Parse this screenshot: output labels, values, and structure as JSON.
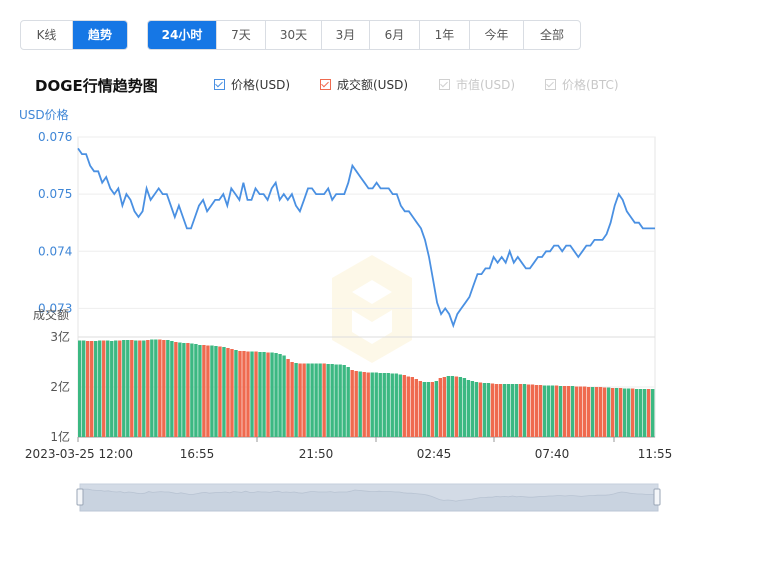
{
  "view_tabs": [
    {
      "label": "K线",
      "active": false
    },
    {
      "label": "趋势",
      "active": true
    }
  ],
  "range_tabs": [
    {
      "label": "24小时",
      "active": true
    },
    {
      "label": "7天",
      "active": false
    },
    {
      "label": "30天",
      "active": false
    },
    {
      "label": "3月",
      "active": false
    },
    {
      "label": "6月",
      "active": false
    },
    {
      "label": "1年",
      "active": false
    },
    {
      "label": "今年",
      "active": false
    },
    {
      "label": "全部",
      "active": false
    }
  ],
  "legend": [
    {
      "label": "价格(USD)",
      "checked": true,
      "color": "#4a90e2"
    },
    {
      "label": "成交额(USD)",
      "checked": true,
      "color": "#ef6a4f"
    },
    {
      "label": "市值(USD)",
      "checked": false,
      "color": "#cccccc"
    },
    {
      "label": "价格(BTC)",
      "checked": false,
      "color": "#cccccc"
    }
  ],
  "colors": {
    "accent": "#1677e5",
    "price_line": "#4a90e2",
    "volume_up": "#3cb882",
    "volume_down": "#ef6a4f",
    "navigator_fill": "#d3dbe6"
  },
  "chart_data": [
    {
      "type": "line",
      "title": "DOGE行情趋势图",
      "ylabel": "USD价格",
      "ylim": [
        0.0725,
        0.076
      ],
      "yticks": [
        "0.076",
        "0.075",
        "0.074",
        "0.073"
      ],
      "xticks": [
        "2023-03-25 12:00",
        "16:55",
        "21:50",
        "02:45",
        "07:40",
        "11:55"
      ],
      "grid": true,
      "series": [
        {
          "name": "价格(USD)",
          "x_minutes": [
            0,
            5,
            10,
            15,
            20,
            25,
            30,
            35,
            40,
            45,
            50,
            55,
            60,
            65,
            70,
            75,
            80,
            85,
            90,
            95,
            100,
            105,
            110,
            115,
            120,
            125,
            130,
            135,
            140,
            145,
            150,
            155,
            160,
            165,
            170,
            175,
            180,
            185,
            190,
            195,
            200,
            205,
            210,
            215,
            220,
            225,
            230,
            235,
            240,
            245,
            250,
            255,
            260,
            265,
            270,
            275,
            280,
            285,
            290,
            295,
            300,
            305,
            310,
            315,
            320,
            325,
            330,
            335,
            340,
            345,
            350,
            355,
            360,
            365,
            370,
            375,
            380,
            385,
            390,
            395,
            400,
            405,
            410,
            415,
            420,
            425,
            430,
            435,
            440,
            445,
            450,
            455,
            460,
            465,
            470,
            475,
            480,
            485,
            490,
            495,
            500,
            505,
            510,
            515,
            520,
            525,
            530,
            535,
            540,
            545,
            550,
            555,
            560,
            565,
            570,
            575,
            580,
            585,
            590,
            595,
            600,
            605,
            610,
            615,
            620,
            625,
            630,
            635,
            640,
            645,
            650,
            655,
            660,
            665,
            670,
            675,
            680,
            685,
            690,
            695,
            700,
            705,
            710,
            715
          ],
          "values": [
            0.0758,
            0.0757,
            0.0757,
            0.0755,
            0.0754,
            0.0754,
            0.0752,
            0.0753,
            0.0751,
            0.075,
            0.0751,
            0.0748,
            0.075,
            0.0749,
            0.0747,
            0.0746,
            0.0747,
            0.0751,
            0.0749,
            0.075,
            0.0751,
            0.075,
            0.075,
            0.0748,
            0.0746,
            0.0748,
            0.0746,
            0.0744,
            0.0744,
            0.0746,
            0.0748,
            0.0749,
            0.0747,
            0.0748,
            0.0749,
            0.0749,
            0.075,
            0.0748,
            0.0751,
            0.075,
            0.0749,
            0.0752,
            0.0749,
            0.0749,
            0.0751,
            0.075,
            0.075,
            0.0749,
            0.0751,
            0.0752,
            0.0749,
            0.075,
            0.0749,
            0.075,
            0.0748,
            0.0747,
            0.0749,
            0.0751,
            0.0751,
            0.075,
            0.075,
            0.075,
            0.0751,
            0.0749,
            0.075,
            0.075,
            0.075,
            0.0752,
            0.0755,
            0.0754,
            0.0753,
            0.0752,
            0.0751,
            0.0751,
            0.0752,
            0.0751,
            0.0751,
            0.0751,
            0.075,
            0.075,
            0.0748,
            0.0747,
            0.0747,
            0.0746,
            0.0745,
            0.0744,
            0.0742,
            0.0739,
            0.0735,
            0.0731,
            0.0729,
            0.073,
            0.0729,
            0.0727,
            0.0729,
            0.073,
            0.0731,
            0.0732,
            0.0734,
            0.0736,
            0.0736,
            0.0737,
            0.0737,
            0.0739,
            0.0738,
            0.0739,
            0.0738,
            0.074,
            0.0738,
            0.0739,
            0.0738,
            0.0737,
            0.0737,
            0.0738,
            0.0739,
            0.0739,
            0.074,
            0.074,
            0.0741,
            0.0741,
            0.074,
            0.0741,
            0.0741,
            0.074,
            0.0739,
            0.074,
            0.0741,
            0.0741,
            0.0742,
            0.0742,
            0.0742,
            0.0743,
            0.0745,
            0.0748,
            0.075,
            0.0749,
            0.0747,
            0.0746,
            0.0745,
            0.0745,
            0.0744,
            0.0744,
            0.0744,
            0.0744
          ]
        }
      ]
    },
    {
      "type": "bar",
      "ylabel": "成交额",
      "ylim": [
        1,
        3
      ],
      "yticks": [
        "3亿",
        "2亿",
        "1亿"
      ],
      "series": [
        {
          "name": "成交额(USD)",
          "values_yi": [
            2.93,
            2.93,
            2.92,
            2.92,
            2.92,
            2.93,
            2.93,
            2.93,
            2.92,
            2.93,
            2.93,
            2.94,
            2.94,
            2.94,
            2.93,
            2.93,
            2.93,
            2.94,
            2.95,
            2.95,
            2.95,
            2.94,
            2.94,
            2.92,
            2.9,
            2.89,
            2.88,
            2.88,
            2.87,
            2.86,
            2.84,
            2.84,
            2.83,
            2.83,
            2.82,
            2.81,
            2.8,
            2.78,
            2.76,
            2.74,
            2.72,
            2.72,
            2.71,
            2.71,
            2.71,
            2.7,
            2.7,
            2.69,
            2.69,
            2.68,
            2.66,
            2.63,
            2.56,
            2.5,
            2.48,
            2.47,
            2.47,
            2.47,
            2.47,
            2.47,
            2.47,
            2.47,
            2.46,
            2.46,
            2.45,
            2.45,
            2.44,
            2.4,
            2.34,
            2.32,
            2.31,
            2.3,
            2.29,
            2.29,
            2.29,
            2.28,
            2.28,
            2.28,
            2.27,
            2.27,
            2.25,
            2.24,
            2.21,
            2.2,
            2.16,
            2.12,
            2.1,
            2.1,
            2.1,
            2.12,
            2.18,
            2.2,
            2.22,
            2.22,
            2.21,
            2.2,
            2.18,
            2.14,
            2.12,
            2.1,
            2.09,
            2.08,
            2.08,
            2.07,
            2.06,
            2.06,
            2.06,
            2.06,
            2.06,
            2.06,
            2.06,
            2.06,
            2.05,
            2.05,
            2.04,
            2.04,
            2.03,
            2.03,
            2.03,
            2.03,
            2.02,
            2.02,
            2.02,
            2.02,
            2.01,
            2.01,
            2.01,
            2.0,
            2.0,
            2.0,
            2.0,
            1.99,
            1.99,
            1.98,
            1.98,
            1.98,
            1.97,
            1.97,
            1.97,
            1.96,
            1.96,
            1.96,
            1.96,
            1.96
          ],
          "colors": "mixed green and red"
        }
      ]
    }
  ]
}
